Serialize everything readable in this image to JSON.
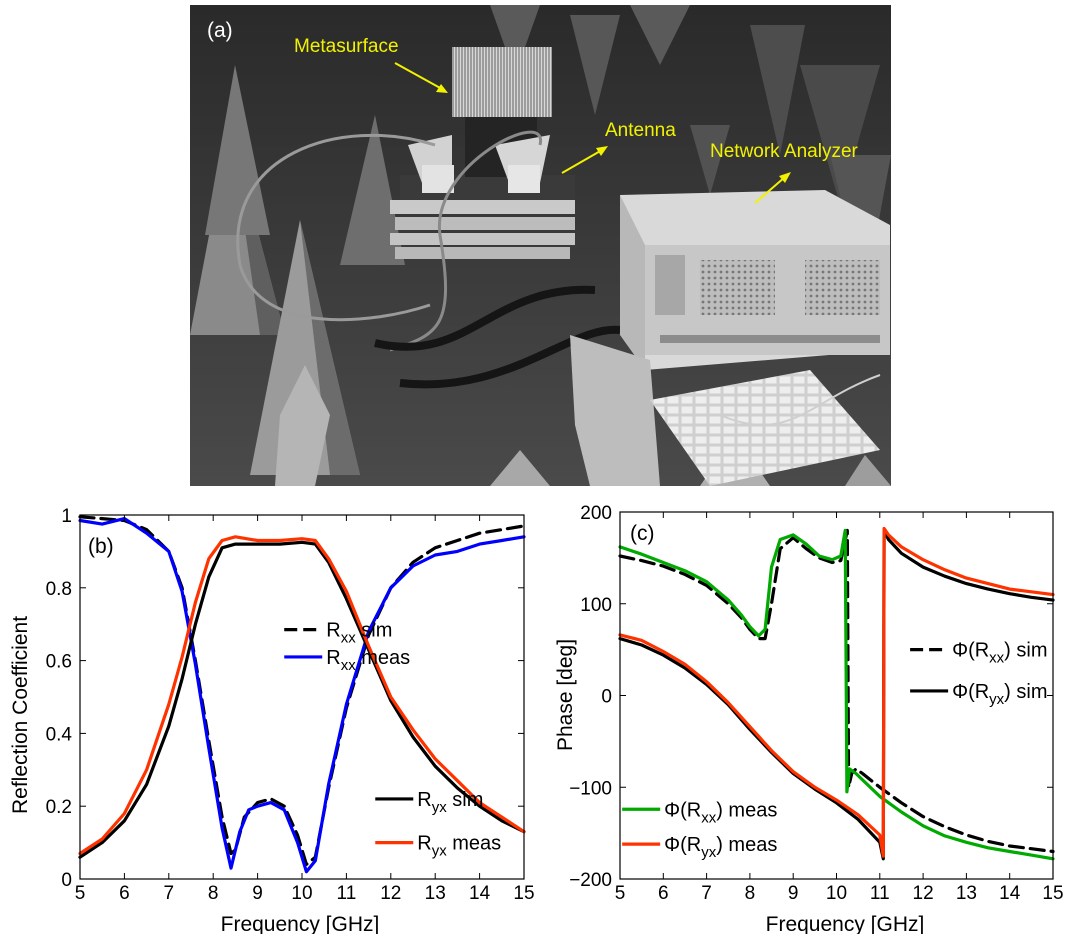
{
  "photo": {
    "panel_label": "(a)",
    "labels": {
      "metasurface": "Metasurface",
      "antenna": "Antenna",
      "network_analyzer": "Network Analyzer"
    },
    "label_color": "#f2f200"
  },
  "chart_data": [
    {
      "type": "line",
      "panel_label": "(b)",
      "xlabel": "Frequency [GHz]",
      "ylabel": "Reflection Coefficient",
      "xlim": [
        5,
        15
      ],
      "ylim": [
        0,
        1
      ],
      "xticks": [
        5,
        6,
        7,
        8,
        9,
        10,
        11,
        12,
        13,
        14,
        15
      ],
      "yticks": [
        0,
        0.2,
        0.4,
        0.6,
        0.8,
        1
      ],
      "ytick_labels": [
        "0",
        "0.2",
        "0.4",
        "0.6",
        "0.8",
        "1"
      ],
      "grid": false,
      "series": [
        {
          "name": "R_xx sim",
          "label_main": "R",
          "label_sub": "xx",
          "label_tail": " sim",
          "color": "#000000",
          "style": "dashed",
          "x": [
            5,
            5.5,
            6,
            6.5,
            7,
            7.3,
            7.6,
            7.9,
            8.2,
            8.4,
            8.5,
            8.7,
            9.0,
            9.3,
            9.6,
            9.9,
            10.1,
            10.3,
            10.6,
            11.0,
            11.5,
            12.0,
            12.5,
            13.0,
            13.5,
            14.0,
            14.5,
            15
          ],
          "y": [
            0.995,
            0.99,
            0.985,
            0.96,
            0.9,
            0.8,
            0.6,
            0.38,
            0.17,
            0.07,
            0.08,
            0.17,
            0.21,
            0.22,
            0.2,
            0.12,
            0.04,
            0.06,
            0.25,
            0.47,
            0.67,
            0.8,
            0.87,
            0.91,
            0.93,
            0.95,
            0.96,
            0.97
          ]
        },
        {
          "name": "R_xx meas",
          "label_main": "R",
          "label_sub": "xx",
          "label_tail": " meas",
          "color": "#0000ff",
          "style": "solid",
          "x": [
            5,
            5.5,
            6,
            6.5,
            7,
            7.3,
            7.6,
            7.9,
            8.2,
            8.4,
            8.6,
            8.8,
            9.0,
            9.3,
            9.6,
            9.9,
            10.1,
            10.3,
            10.6,
            11.0,
            11.5,
            12.0,
            12.5,
            13.0,
            13.5,
            14.0,
            14.5,
            15
          ],
          "y": [
            0.985,
            0.975,
            0.99,
            0.95,
            0.9,
            0.79,
            0.59,
            0.36,
            0.14,
            0.03,
            0.13,
            0.19,
            0.2,
            0.21,
            0.19,
            0.1,
            0.02,
            0.05,
            0.26,
            0.48,
            0.68,
            0.8,
            0.86,
            0.89,
            0.9,
            0.92,
            0.93,
            0.94
          ]
        },
        {
          "name": "R_yx sim",
          "label_main": "R",
          "label_sub": "yx",
          "label_tail": " sim",
          "color": "#000000",
          "style": "solid",
          "x": [
            5,
            5.5,
            6,
            6.5,
            7,
            7.3,
            7.6,
            7.9,
            8.2,
            8.5,
            9.0,
            9.5,
            10.0,
            10.3,
            10.6,
            11.0,
            11.5,
            12.0,
            12.5,
            13.0,
            13.5,
            14.0,
            14.5,
            15
          ],
          "y": [
            0.06,
            0.1,
            0.16,
            0.26,
            0.42,
            0.55,
            0.7,
            0.83,
            0.91,
            0.92,
            0.92,
            0.92,
            0.925,
            0.92,
            0.87,
            0.77,
            0.63,
            0.49,
            0.39,
            0.31,
            0.25,
            0.2,
            0.16,
            0.13
          ]
        },
        {
          "name": "R_yx meas",
          "label_main": "R",
          "label_sub": "yx",
          "label_tail": " meas",
          "color": "#ff3300",
          "style": "solid",
          "x": [
            5,
            5.5,
            6,
            6.5,
            7,
            7.3,
            7.6,
            7.9,
            8.2,
            8.5,
            9.0,
            9.5,
            10.0,
            10.3,
            10.6,
            11.0,
            11.5,
            12.0,
            12.5,
            13.0,
            13.5,
            14.0,
            14.5,
            15
          ],
          "y": [
            0.07,
            0.11,
            0.18,
            0.3,
            0.48,
            0.61,
            0.76,
            0.88,
            0.93,
            0.94,
            0.93,
            0.93,
            0.935,
            0.93,
            0.88,
            0.79,
            0.64,
            0.5,
            0.41,
            0.33,
            0.27,
            0.21,
            0.17,
            0.13
          ]
        }
      ],
      "legend": [
        {
          "series": "R_xx sim",
          "main": "R",
          "sub": "xx",
          "tail": " sim",
          "color": "#000000",
          "style": "dashed",
          "x": 9.6,
          "y": 0.685
        },
        {
          "series": "R_xx meas",
          "main": "R",
          "sub": "xx",
          "tail": " meas",
          "color": "#0000ff",
          "style": "solid",
          "x": 9.6,
          "y": 0.61
        },
        {
          "series": "R_yx sim",
          "main": "R",
          "sub": "yx",
          "tail": " sim",
          "color": "#000000",
          "style": "solid",
          "x": 11.65,
          "y": 0.22
        },
        {
          "series": "R_yx meas",
          "main": "R",
          "sub": "yx",
          "tail": " meas",
          "color": "#ff3300",
          "style": "solid",
          "x": 11.65,
          "y": 0.1
        }
      ],
      "legend_sample_color_meas_xx": "#00aa00"
    },
    {
      "type": "line",
      "panel_label": "(c)",
      "xlabel": "Frequency [GHz]",
      "ylabel": "Phase [deg]",
      "xlim": [
        5,
        15
      ],
      "ylim": [
        -200,
        200
      ],
      "xticks": [
        5,
        6,
        7,
        8,
        9,
        10,
        11,
        12,
        13,
        14,
        15
      ],
      "yticks": [
        -200,
        -100,
        0,
        100,
        200
      ],
      "ytick_labels": [
        "−200",
        "−100",
        "0",
        "100",
        "200"
      ],
      "grid": false,
      "series": [
        {
          "name": "Φ(R_xx) sim",
          "label_main": "Φ(R",
          "label_sub": "xx",
          "label_tail": ") sim",
          "color": "#000000",
          "style": "dashed",
          "x": [
            5,
            5.5,
            6,
            6.5,
            7,
            7.5,
            7.8,
            8.0,
            8.2,
            8.35,
            8.5,
            8.7,
            9.0,
            9.3,
            9.6,
            9.9,
            10.1,
            10.25,
            10.28,
            10.35,
            10.45,
            10.6,
            11.0,
            11.5,
            12.0,
            12.5,
            13.0,
            13.5,
            14.0,
            14.5,
            15
          ],
          "y": [
            152,
            147,
            141,
            132,
            120,
            100,
            85,
            72,
            62,
            62,
            100,
            160,
            172,
            160,
            150,
            145,
            147,
            180,
            -100,
            -85,
            -80,
            -85,
            -100,
            -117,
            -132,
            -143,
            -152,
            -159,
            -164,
            -167,
            -170
          ]
        },
        {
          "name": "Φ(R_yx) sim",
          "label_main": "Φ(R",
          "label_sub": "yx",
          "label_tail": ") sim",
          "color": "#000000",
          "style": "solid",
          "x": [
            5,
            5.5,
            6,
            6.5,
            7,
            7.5,
            8.0,
            8.5,
            9.0,
            9.5,
            10.0,
            10.5,
            11.0,
            11.08,
            11.1,
            11.2,
            11.5,
            12.0,
            12.5,
            13.0,
            13.5,
            14.0,
            14.5,
            15
          ],
          "y": [
            62,
            55,
            44,
            30,
            12,
            -10,
            -37,
            -62,
            -85,
            -102,
            -117,
            -135,
            -160,
            -178,
            180,
            170,
            155,
            140,
            130,
            122,
            116,
            111,
            107,
            104
          ]
        },
        {
          "name": "Φ(R_xx) meas",
          "label_main": "Φ(R",
          "label_sub": "xx",
          "label_tail": ") meas",
          "color": "#00aa00",
          "style": "solid",
          "x": [
            5,
            5.5,
            6,
            6.5,
            7,
            7.5,
            7.8,
            8.0,
            8.2,
            8.35,
            8.5,
            8.7,
            9.0,
            9.3,
            9.6,
            9.9,
            10.1,
            10.2,
            10.24,
            10.3,
            10.45,
            10.6,
            11.0,
            11.5,
            12.0,
            12.5,
            13.0,
            13.5,
            14.0,
            14.5,
            15
          ],
          "y": [
            162,
            154,
            145,
            136,
            124,
            104,
            88,
            75,
            65,
            72,
            140,
            170,
            175,
            165,
            152,
            148,
            152,
            180,
            -105,
            -80,
            -85,
            -92,
            -110,
            -127,
            -142,
            -153,
            -160,
            -166,
            -170,
            -174,
            -178
          ]
        },
        {
          "name": "Φ(R_yx) meas",
          "label_main": "Φ(R",
          "label_sub": "yx",
          "label_tail": ") meas",
          "color": "#ff3300",
          "style": "solid",
          "x": [
            5,
            5.5,
            6,
            6.5,
            7,
            7.5,
            8.0,
            8.5,
            9.0,
            9.5,
            10.0,
            10.5,
            11.0,
            11.08,
            11.1,
            11.2,
            11.5,
            12.0,
            12.5,
            13.0,
            13.5,
            14.0,
            14.5,
            15
          ],
          "y": [
            66,
            60,
            48,
            34,
            15,
            -8,
            -34,
            -60,
            -83,
            -100,
            -114,
            -130,
            -152,
            -175,
            182,
            175,
            162,
            148,
            137,
            128,
            122,
            116,
            113,
            110
          ]
        }
      ],
      "legend": [
        {
          "series": "Φ(R_xx) sim",
          "main": "Φ(R",
          "sub": "xx",
          "tail": ") sim",
          "color": "#000000",
          "style": "dashed",
          "x": 11.7,
          "y": 50
        },
        {
          "series": "Φ(R_yx) sim",
          "main": "Φ(R",
          "sub": "yx",
          "tail": ") sim",
          "color": "#000000",
          "style": "solid",
          "x": 11.7,
          "y": 5
        },
        {
          "series": "Φ(R_xx) meas",
          "main": "Φ(R",
          "sub": "xx",
          "tail": ") meas",
          "color": "#00aa00",
          "style": "solid",
          "x": 5.05,
          "y": -124
        },
        {
          "series": "Φ(R_yx) meas",
          "main": "Φ(R",
          "sub": "yx",
          "tail": ") meas",
          "color": "#ff3300",
          "style": "solid",
          "x": 5.05,
          "y": -162
        }
      ]
    }
  ]
}
